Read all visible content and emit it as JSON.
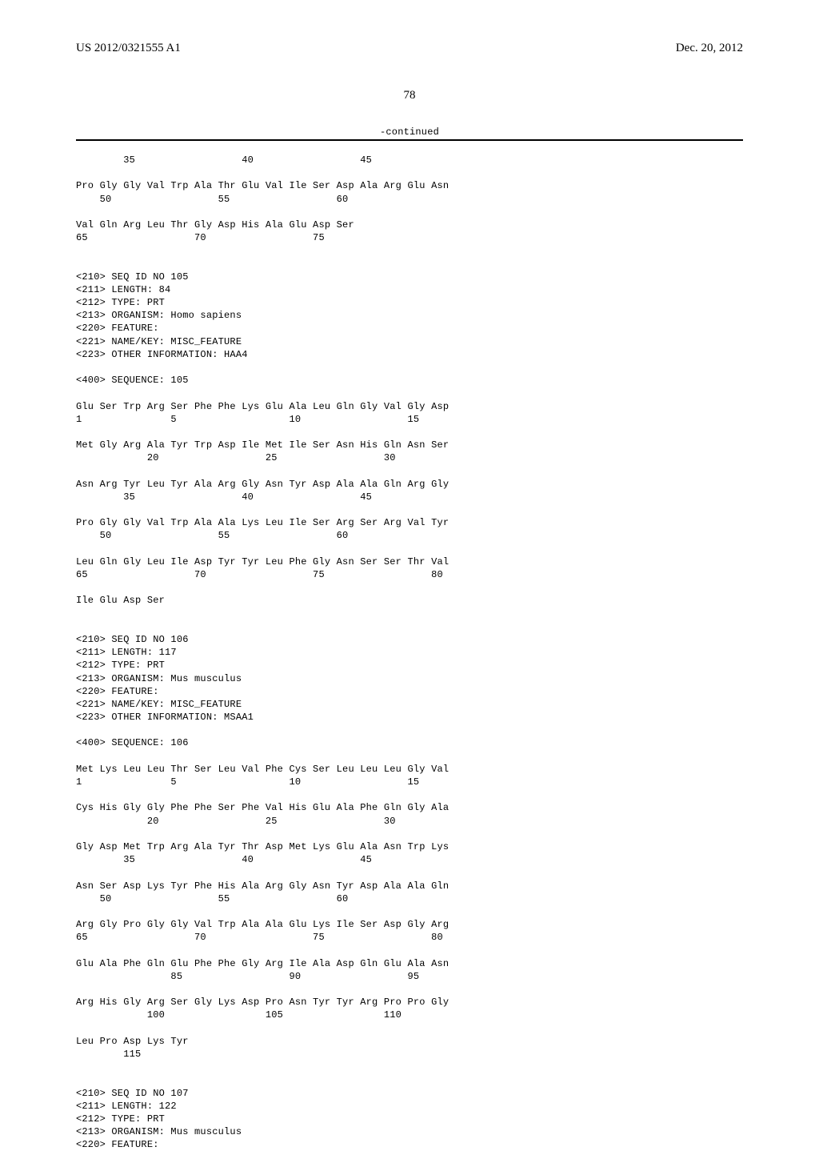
{
  "header": {
    "pub_no": "US 2012/0321555 A1",
    "date": "Dec. 20, 2012"
  },
  "page_number": "78",
  "continued_label": "-continued",
  "blocks": [
    {
      "lines": [
        "        35                  40                  45",
        "",
        "Pro Gly Gly Val Trp Ala Thr Glu Val Ile Ser Asp Ala Arg Glu Asn",
        "    50                  55                  60",
        "",
        "Val Gln Arg Leu Thr Gly Asp His Ala Glu Asp Ser",
        "65                  70                  75",
        "",
        "",
        "<210> SEQ ID NO 105",
        "<211> LENGTH: 84",
        "<212> TYPE: PRT",
        "<213> ORGANISM: Homo sapiens",
        "<220> FEATURE:",
        "<221> NAME/KEY: MISC_FEATURE",
        "<223> OTHER INFORMATION: HAA4",
        "",
        "<400> SEQUENCE: 105",
        "",
        "Glu Ser Trp Arg Ser Phe Phe Lys Glu Ala Leu Gln Gly Val Gly Asp",
        "1               5                   10                  15",
        "",
        "Met Gly Arg Ala Tyr Trp Asp Ile Met Ile Ser Asn His Gln Asn Ser",
        "            20                  25                  30",
        "",
        "Asn Arg Tyr Leu Tyr Ala Arg Gly Asn Tyr Asp Ala Ala Gln Arg Gly",
        "        35                  40                  45",
        "",
        "Pro Gly Gly Val Trp Ala Ala Lys Leu Ile Ser Arg Ser Arg Val Tyr",
        "    50                  55                  60",
        "",
        "Leu Gln Gly Leu Ile Asp Tyr Tyr Leu Phe Gly Asn Ser Ser Thr Val",
        "65                  70                  75                  80",
        "",
        "Ile Glu Asp Ser",
        "",
        "",
        "<210> SEQ ID NO 106",
        "<211> LENGTH: 117",
        "<212> TYPE: PRT",
        "<213> ORGANISM: Mus musculus",
        "<220> FEATURE:",
        "<221> NAME/KEY: MISC_FEATURE",
        "<223> OTHER INFORMATION: MSAA1",
        "",
        "<400> SEQUENCE: 106",
        "",
        "Met Lys Leu Leu Thr Ser Leu Val Phe Cys Ser Leu Leu Leu Gly Val",
        "1               5                   10                  15",
        "",
        "Cys His Gly Gly Phe Phe Ser Phe Val His Glu Ala Phe Gln Gly Ala",
        "            20                  25                  30",
        "",
        "Gly Asp Met Trp Arg Ala Tyr Thr Asp Met Lys Glu Ala Asn Trp Lys",
        "        35                  40                  45",
        "",
        "Asn Ser Asp Lys Tyr Phe His Ala Arg Gly Asn Tyr Asp Ala Ala Gln",
        "    50                  55                  60",
        "",
        "Arg Gly Pro Gly Gly Val Trp Ala Ala Glu Lys Ile Ser Asp Gly Arg",
        "65                  70                  75                  80",
        "",
        "Glu Ala Phe Gln Glu Phe Phe Gly Arg Ile Ala Asp Gln Glu Ala Asn",
        "                85                  90                  95",
        "",
        "Arg His Gly Arg Ser Gly Lys Asp Pro Asn Tyr Tyr Arg Pro Pro Gly",
        "            100                 105                 110",
        "",
        "Leu Pro Asp Lys Tyr",
        "        115",
        "",
        "",
        "<210> SEQ ID NO 107",
        "<211> LENGTH: 122",
        "<212> TYPE: PRT",
        "<213> ORGANISM: Mus musculus",
        "<220> FEATURE:"
      ]
    }
  ]
}
